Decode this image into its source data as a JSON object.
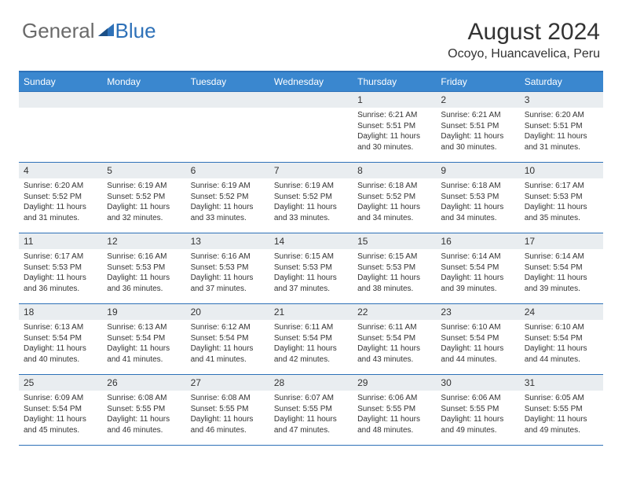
{
  "brand": {
    "part1": "General",
    "part2": "Blue"
  },
  "title": "August 2024",
  "location": "Ocoyo, Huancavelica, Peru",
  "colors": {
    "header_bg": "#3a87cf",
    "border": "#2e71b8",
    "daybar_bg": "#e9edf0",
    "text": "#333333",
    "brand_gray": "#6a6a6a",
    "brand_blue": "#2e71b8",
    "page_bg": "#ffffff"
  },
  "days_of_week": [
    "Sunday",
    "Monday",
    "Tuesday",
    "Wednesday",
    "Thursday",
    "Friday",
    "Saturday"
  ],
  "weeks": [
    [
      null,
      null,
      null,
      null,
      {
        "n": "1",
        "sunrise": "6:21 AM",
        "sunset": "5:51 PM",
        "daylight": "11 hours and 30 minutes."
      },
      {
        "n": "2",
        "sunrise": "6:21 AM",
        "sunset": "5:51 PM",
        "daylight": "11 hours and 30 minutes."
      },
      {
        "n": "3",
        "sunrise": "6:20 AM",
        "sunset": "5:51 PM",
        "daylight": "11 hours and 31 minutes."
      }
    ],
    [
      {
        "n": "4",
        "sunrise": "6:20 AM",
        "sunset": "5:52 PM",
        "daylight": "11 hours and 31 minutes."
      },
      {
        "n": "5",
        "sunrise": "6:19 AM",
        "sunset": "5:52 PM",
        "daylight": "11 hours and 32 minutes."
      },
      {
        "n": "6",
        "sunrise": "6:19 AM",
        "sunset": "5:52 PM",
        "daylight": "11 hours and 33 minutes."
      },
      {
        "n": "7",
        "sunrise": "6:19 AM",
        "sunset": "5:52 PM",
        "daylight": "11 hours and 33 minutes."
      },
      {
        "n": "8",
        "sunrise": "6:18 AM",
        "sunset": "5:52 PM",
        "daylight": "11 hours and 34 minutes."
      },
      {
        "n": "9",
        "sunrise": "6:18 AM",
        "sunset": "5:53 PM",
        "daylight": "11 hours and 34 minutes."
      },
      {
        "n": "10",
        "sunrise": "6:17 AM",
        "sunset": "5:53 PM",
        "daylight": "11 hours and 35 minutes."
      }
    ],
    [
      {
        "n": "11",
        "sunrise": "6:17 AM",
        "sunset": "5:53 PM",
        "daylight": "11 hours and 36 minutes."
      },
      {
        "n": "12",
        "sunrise": "6:16 AM",
        "sunset": "5:53 PM",
        "daylight": "11 hours and 36 minutes."
      },
      {
        "n": "13",
        "sunrise": "6:16 AM",
        "sunset": "5:53 PM",
        "daylight": "11 hours and 37 minutes."
      },
      {
        "n": "14",
        "sunrise": "6:15 AM",
        "sunset": "5:53 PM",
        "daylight": "11 hours and 37 minutes."
      },
      {
        "n": "15",
        "sunrise": "6:15 AM",
        "sunset": "5:53 PM",
        "daylight": "11 hours and 38 minutes."
      },
      {
        "n": "16",
        "sunrise": "6:14 AM",
        "sunset": "5:54 PM",
        "daylight": "11 hours and 39 minutes."
      },
      {
        "n": "17",
        "sunrise": "6:14 AM",
        "sunset": "5:54 PM",
        "daylight": "11 hours and 39 minutes."
      }
    ],
    [
      {
        "n": "18",
        "sunrise": "6:13 AM",
        "sunset": "5:54 PM",
        "daylight": "11 hours and 40 minutes."
      },
      {
        "n": "19",
        "sunrise": "6:13 AM",
        "sunset": "5:54 PM",
        "daylight": "11 hours and 41 minutes."
      },
      {
        "n": "20",
        "sunrise": "6:12 AM",
        "sunset": "5:54 PM",
        "daylight": "11 hours and 41 minutes."
      },
      {
        "n": "21",
        "sunrise": "6:11 AM",
        "sunset": "5:54 PM",
        "daylight": "11 hours and 42 minutes."
      },
      {
        "n": "22",
        "sunrise": "6:11 AM",
        "sunset": "5:54 PM",
        "daylight": "11 hours and 43 minutes."
      },
      {
        "n": "23",
        "sunrise": "6:10 AM",
        "sunset": "5:54 PM",
        "daylight": "11 hours and 44 minutes."
      },
      {
        "n": "24",
        "sunrise": "6:10 AM",
        "sunset": "5:54 PM",
        "daylight": "11 hours and 44 minutes."
      }
    ],
    [
      {
        "n": "25",
        "sunrise": "6:09 AM",
        "sunset": "5:54 PM",
        "daylight": "11 hours and 45 minutes."
      },
      {
        "n": "26",
        "sunrise": "6:08 AM",
        "sunset": "5:55 PM",
        "daylight": "11 hours and 46 minutes."
      },
      {
        "n": "27",
        "sunrise": "6:08 AM",
        "sunset": "5:55 PM",
        "daylight": "11 hours and 46 minutes."
      },
      {
        "n": "28",
        "sunrise": "6:07 AM",
        "sunset": "5:55 PM",
        "daylight": "11 hours and 47 minutes."
      },
      {
        "n": "29",
        "sunrise": "6:06 AM",
        "sunset": "5:55 PM",
        "daylight": "11 hours and 48 minutes."
      },
      {
        "n": "30",
        "sunrise": "6:06 AM",
        "sunset": "5:55 PM",
        "daylight": "11 hours and 49 minutes."
      },
      {
        "n": "31",
        "sunrise": "6:05 AM",
        "sunset": "5:55 PM",
        "daylight": "11 hours and 49 minutes."
      }
    ]
  ],
  "labels": {
    "sunrise": "Sunrise:",
    "sunset": "Sunset:",
    "daylight": "Daylight:"
  }
}
